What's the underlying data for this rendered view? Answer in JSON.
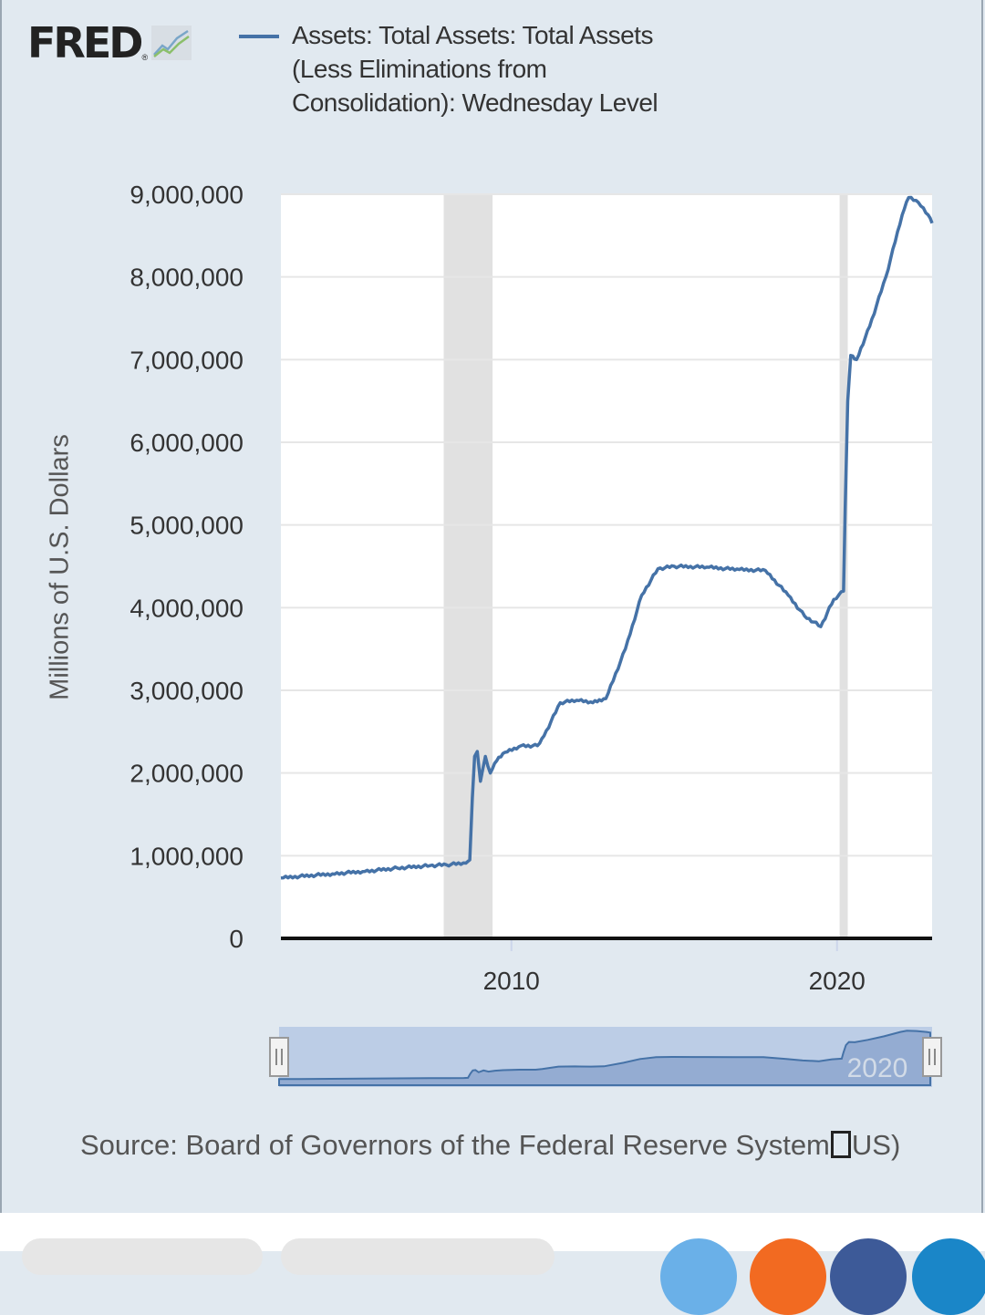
{
  "logo": {
    "text": "FRED",
    "reg_mark": "®",
    "icon": "trend-lines-icon"
  },
  "legend": {
    "label": "Assets: Total Assets: Total Assets (Less Eliminations from Consolidation): Wednesday Level",
    "color": "#4572a7"
  },
  "source": {
    "prefix": "Source: Board of Governors of the Federal Reserve System",
    "suffix": "US)",
    "icon": "fullscreen-icon"
  },
  "navigator": {
    "label": "2020",
    "left_handle_icon": "drag-handle-icon",
    "right_handle_icon": "drag-handle-icon"
  },
  "chart_data": {
    "type": "line",
    "title": "",
    "xlabel": "",
    "ylabel": "Millions of U.S. Dollars",
    "xlim": [
      2002.92,
      2022.92
    ],
    "ylim": [
      0,
      9000000
    ],
    "y_ticks": [
      0,
      1000000,
      2000000,
      3000000,
      4000000,
      5000000,
      6000000,
      7000000,
      8000000,
      9000000
    ],
    "y_tick_labels": [
      "0",
      "1,000,000",
      "2,000,000",
      "3,000,000",
      "4,000,000",
      "5,000,000",
      "6,000,000",
      "7,000,000",
      "8,000,000",
      "9,000,000"
    ],
    "x_ticks": [
      2010,
      2020
    ],
    "x_tick_labels": [
      "2010",
      "2020"
    ],
    "grid": true,
    "recessions": [
      [
        2007.92,
        2009.42
      ],
      [
        2020.08,
        2020.33
      ]
    ],
    "series": [
      {
        "color": "#4572a7",
        "points": [
          [
            2002.92,
            730000
          ],
          [
            2003.5,
            750000
          ],
          [
            2004.5,
            780000
          ],
          [
            2005.5,
            810000
          ],
          [
            2006.5,
            850000
          ],
          [
            2007.5,
            880000
          ],
          [
            2008.0,
            890000
          ],
          [
            2008.6,
            910000
          ],
          [
            2008.72,
            950000
          ],
          [
            2008.8,
            1700000
          ],
          [
            2008.87,
            2200000
          ],
          [
            2008.95,
            2260000
          ],
          [
            2009.05,
            1900000
          ],
          [
            2009.2,
            2200000
          ],
          [
            2009.35,
            2000000
          ],
          [
            2009.55,
            2150000
          ],
          [
            2009.8,
            2250000
          ],
          [
            2010.3,
            2330000
          ],
          [
            2010.8,
            2330000
          ],
          [
            2011.0,
            2450000
          ],
          [
            2011.5,
            2850000
          ],
          [
            2012.0,
            2880000
          ],
          [
            2012.5,
            2850000
          ],
          [
            2012.9,
            2900000
          ],
          [
            2013.5,
            3500000
          ],
          [
            2014.0,
            4150000
          ],
          [
            2014.5,
            4470000
          ],
          [
            2015.0,
            4500000
          ],
          [
            2016.0,
            4490000
          ],
          [
            2017.0,
            4460000
          ],
          [
            2017.8,
            4450000
          ],
          [
            2018.5,
            4150000
          ],
          [
            2019.0,
            3900000
          ],
          [
            2019.5,
            3770000
          ],
          [
            2019.9,
            4100000
          ],
          [
            2020.2,
            4200000
          ],
          [
            2020.25,
            5200000
          ],
          [
            2020.33,
            6500000
          ],
          [
            2020.42,
            7050000
          ],
          [
            2020.6,
            7000000
          ],
          [
            2021.0,
            7400000
          ],
          [
            2021.5,
            8000000
          ],
          [
            2022.0,
            8750000
          ],
          [
            2022.2,
            8960000
          ],
          [
            2022.5,
            8900000
          ],
          [
            2022.8,
            8750000
          ],
          [
            2022.92,
            8650000
          ]
        ]
      }
    ]
  }
}
